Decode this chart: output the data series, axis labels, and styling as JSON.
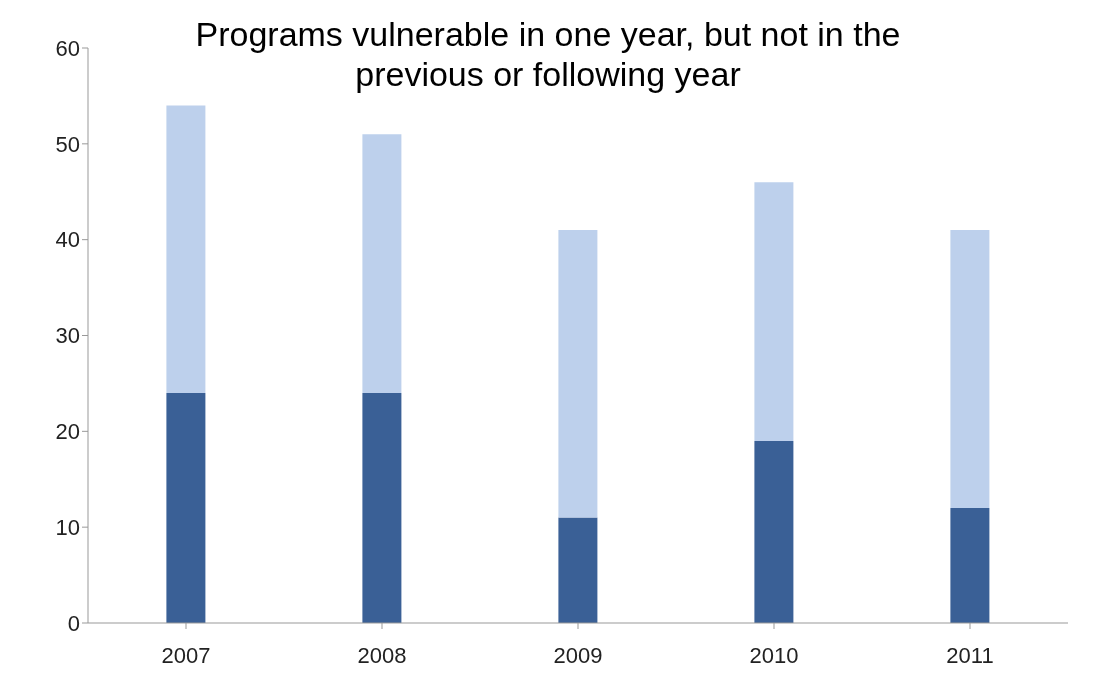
{
  "chart_data": {
    "type": "bar",
    "title": "Programs vulnerable in one year, but not in the previous or following year",
    "categories": [
      "2007",
      "2008",
      "2009",
      "2010",
      "2011"
    ],
    "stacked": true,
    "series": [
      {
        "color": "#3a6096",
        "values": [
          24,
          24,
          11,
          19,
          12
        ]
      },
      {
        "color": "#bdd0ec",
        "values": [
          30,
          27,
          30,
          27,
          29
        ]
      }
    ],
    "ylim": [
      0,
      60
    ],
    "yticks": [
      0,
      10,
      20,
      30,
      40,
      50,
      60
    ]
  }
}
